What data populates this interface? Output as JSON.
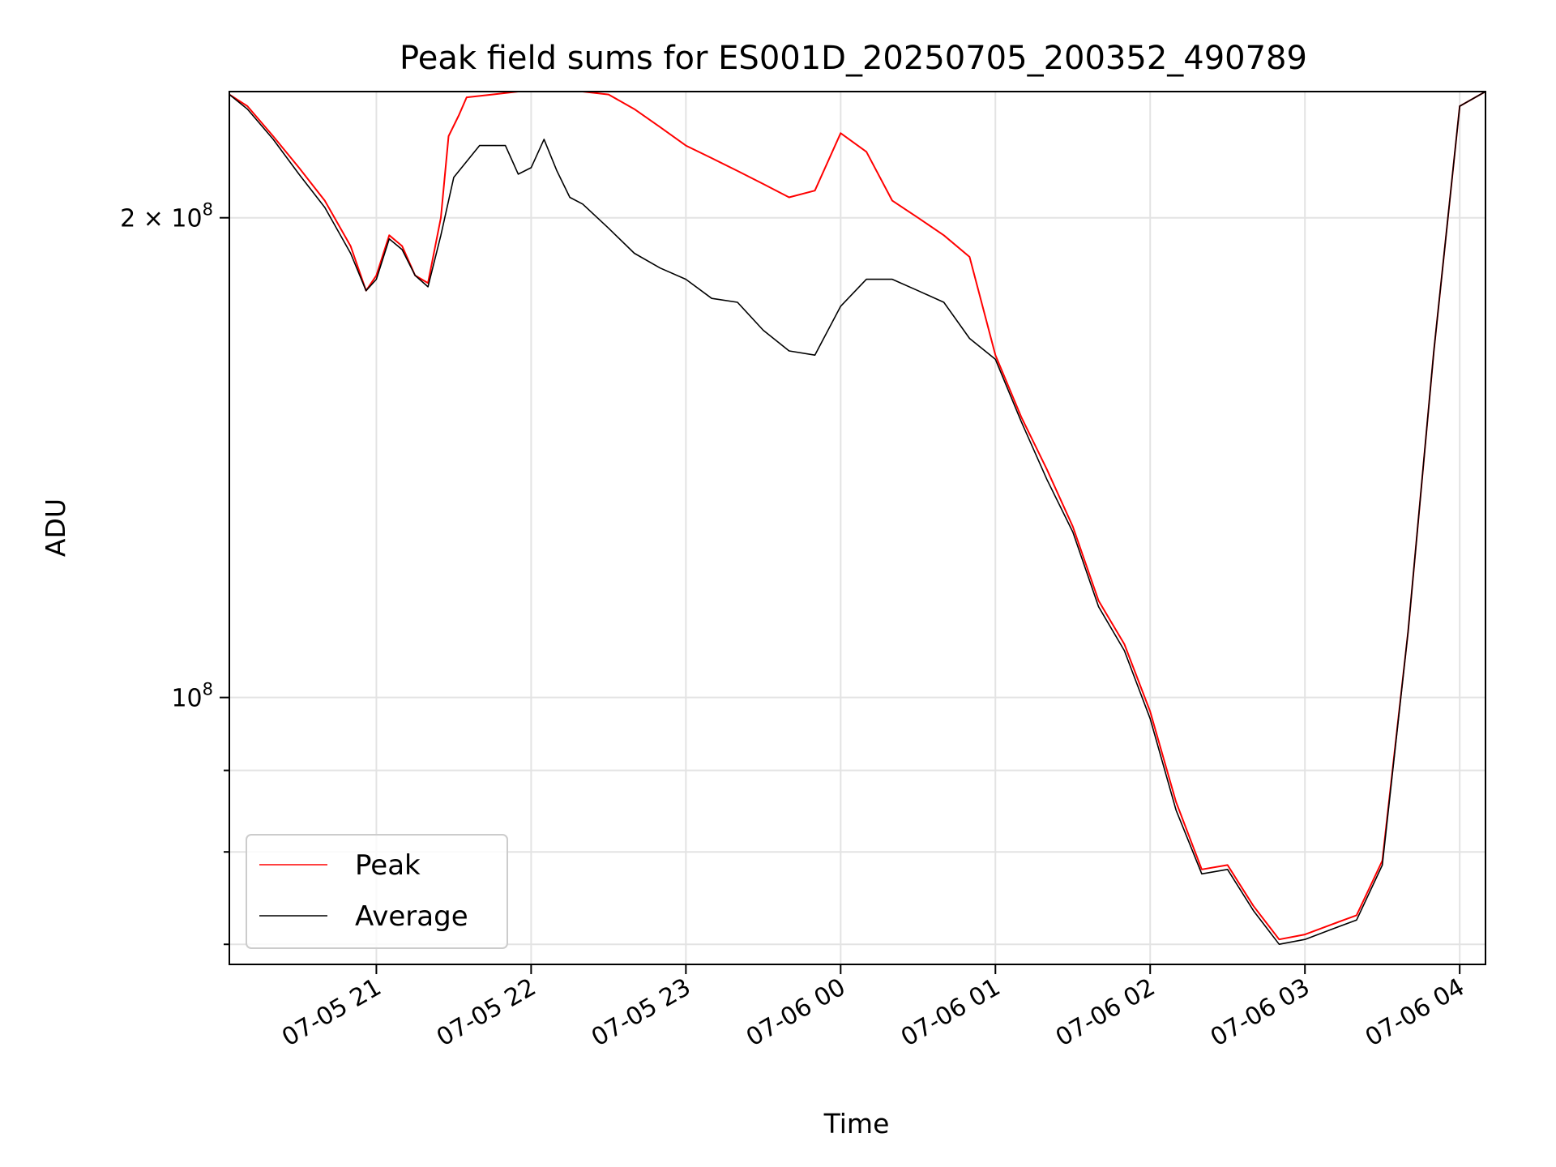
{
  "chart_data": {
    "type": "line",
    "title": "Peak field sums for ES001D_20250705_200352_490789",
    "xlabel": "Time",
    "ylabel": "ADU",
    "y_scale": "log",
    "grid": true,
    "legend_position": "lower-left",
    "x_range": [
      "2025-07-05 20:03",
      "2025-07-06 04:10"
    ],
    "ylim": [
      68000000,
      240000000
    ],
    "x_ticks": [
      "07-05 21",
      "07-05 22",
      "07-05 23",
      "07-06 00",
      "07-06 01",
      "07-06 02",
      "07-06 03",
      "07-06 04"
    ],
    "y_ticks": [
      {
        "label_base": "2 × 10",
        "label_exp": "8",
        "value": 200000000
      },
      {
        "label_base": "10",
        "label_exp": "8",
        "value": 100000000
      }
    ],
    "y_minor_ticks": [
      70000000,
      80000000,
      90000000
    ],
    "series": [
      {
        "name": "Peak",
        "color": "#ff0000",
        "x": [
          "2025-07-05 20:03",
          "2025-07-05 20:10",
          "2025-07-05 20:20",
          "2025-07-05 20:30",
          "2025-07-05 20:40",
          "2025-07-05 20:50",
          "2025-07-05 20:56",
          "2025-07-05 21:00",
          "2025-07-05 21:05",
          "2025-07-05 21:10",
          "2025-07-05 21:15",
          "2025-07-05 21:20",
          "2025-07-05 21:25",
          "2025-07-05 21:28",
          "2025-07-05 21:32",
          "2025-07-05 21:35",
          "2025-07-05 21:45",
          "2025-07-05 21:55",
          "2025-07-05 22:00",
          "2025-07-05 22:05",
          "2025-07-05 22:10",
          "2025-07-05 22:15",
          "2025-07-05 22:20",
          "2025-07-05 22:30",
          "2025-07-05 22:40",
          "2025-07-05 22:50",
          "2025-07-05 23:00",
          "2025-07-05 23:10",
          "2025-07-05 23:20",
          "2025-07-05 23:30",
          "2025-07-05 23:40",
          "2025-07-05 23:50",
          "2025-07-06 00:00",
          "2025-07-06 00:10",
          "2025-07-06 00:20",
          "2025-07-06 00:30",
          "2025-07-06 00:40",
          "2025-07-06 00:50",
          "2025-07-06 01:00",
          "2025-07-06 01:10",
          "2025-07-06 01:20",
          "2025-07-06 01:30",
          "2025-07-06 01:40",
          "2025-07-06 01:50",
          "2025-07-06 02:00",
          "2025-07-06 02:10",
          "2025-07-06 02:20",
          "2025-07-06 02:30",
          "2025-07-06 02:40",
          "2025-07-06 02:50",
          "2025-07-06 03:00",
          "2025-07-06 03:10",
          "2025-07-06 03:20",
          "2025-07-06 03:30",
          "2025-07-06 03:40",
          "2025-07-06 03:50",
          "2025-07-06 04:00",
          "2025-07-06 04:10"
        ],
        "values": [
          239000000,
          235000000,
          225000000,
          215000000,
          205000000,
          192000000,
          180000000,
          184000000,
          195000000,
          192000000,
          184000000,
          182000000,
          200000000,
          225000000,
          232000000,
          238000000,
          239000000,
          240000000,
          240000000,
          240000000,
          240000000,
          240000000,
          240000000,
          239000000,
          234000000,
          228000000,
          222000000,
          218000000,
          214000000,
          210000000,
          206000000,
          208000000,
          226000000,
          220000000,
          205000000,
          200000000,
          195000000,
          189000000,
          164000000,
          150000000,
          139000000,
          128000000,
          115000000,
          108000000,
          98000000,
          86000000,
          78000000,
          78500000,
          74000000,
          70500000,
          71000000,
          72000000,
          73000000,
          79000000,
          110000000,
          165000000,
          235000000,
          240000000
        ]
      },
      {
        "name": "Average",
        "color": "#000000",
        "x": [
          "2025-07-05 20:03",
          "2025-07-05 20:10",
          "2025-07-05 20:20",
          "2025-07-05 20:30",
          "2025-07-05 20:40",
          "2025-07-05 20:50",
          "2025-07-05 20:56",
          "2025-07-05 21:00",
          "2025-07-05 21:05",
          "2025-07-05 21:10",
          "2025-07-05 21:15",
          "2025-07-05 21:20",
          "2025-07-05 21:25",
          "2025-07-05 21:30",
          "2025-07-05 21:40",
          "2025-07-05 21:50",
          "2025-07-05 21:55",
          "2025-07-05 22:00",
          "2025-07-05 22:05",
          "2025-07-05 22:10",
          "2025-07-05 22:15",
          "2025-07-05 22:20",
          "2025-07-05 22:30",
          "2025-07-05 22:40",
          "2025-07-05 22:50",
          "2025-07-05 23:00",
          "2025-07-05 23:10",
          "2025-07-05 23:20",
          "2025-07-05 23:30",
          "2025-07-05 23:40",
          "2025-07-05 23:50",
          "2025-07-06 00:00",
          "2025-07-06 00:10",
          "2025-07-06 00:20",
          "2025-07-06 00:30",
          "2025-07-06 00:40",
          "2025-07-06 00:50",
          "2025-07-06 01:00",
          "2025-07-06 01:10",
          "2025-07-06 01:20",
          "2025-07-06 01:30",
          "2025-07-06 01:40",
          "2025-07-06 01:50",
          "2025-07-06 02:00",
          "2025-07-06 02:10",
          "2025-07-06 02:20",
          "2025-07-06 02:30",
          "2025-07-06 02:40",
          "2025-07-06 02:50",
          "2025-07-06 03:00",
          "2025-07-06 03:10",
          "2025-07-06 03:20",
          "2025-07-06 03:30",
          "2025-07-06 03:40",
          "2025-07-06 03:50",
          "2025-07-06 04:00",
          "2025-07-06 04:10"
        ],
        "values": [
          239000000,
          234000000,
          224000000,
          213000000,
          203000000,
          190000000,
          180000000,
          183000000,
          194000000,
          191000000,
          184000000,
          181000000,
          195000000,
          212000000,
          222000000,
          222000000,
          213000000,
          215000000,
          224000000,
          214000000,
          206000000,
          204000000,
          197000000,
          190000000,
          186000000,
          183000000,
          178000000,
          177000000,
          170000000,
          165000000,
          164000000,
          176000000,
          183000000,
          183000000,
          180000000,
          177000000,
          168000000,
          163000000,
          149000000,
          137000000,
          127000000,
          114000000,
          107000000,
          97000000,
          85000000,
          77500000,
          78000000,
          73500000,
          70000000,
          70500000,
          71500000,
          72500000,
          78500000,
          110000000,
          165000000,
          235000000,
          240000000
        ]
      }
    ]
  }
}
